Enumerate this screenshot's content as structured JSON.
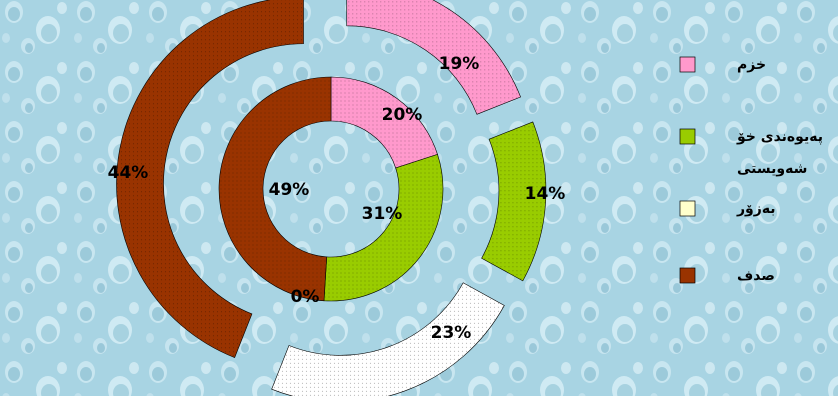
{
  "chart_data": {
    "type": "doughnut",
    "subtype": "exploded-doughnut",
    "rings": [
      {
        "ring": "outer",
        "values": [
          19,
          14,
          23,
          44
        ],
        "labels": [
          "19%",
          "14%",
          "23%",
          "44%"
        ]
      },
      {
        "ring": "inner",
        "values": [
          20,
          31,
          0,
          49
        ],
        "labels": [
          "20%",
          "31%",
          "0%",
          "49%"
        ]
      }
    ],
    "categories": [
      "خزم",
      "پەيوەندی خۆ شەويستی",
      "بەزۆر",
      "صدف"
    ],
    "colors": [
      "#ff99cc",
      "#99cc00",
      "#ffffff",
      "#993300"
    ],
    "legend": {
      "position": "right",
      "items": [
        {
          "label": "خزم",
          "color": "#ff99cc"
        },
        {
          "label": "پەيوەندی خۆ شەويستی",
          "color": "#99cc00"
        },
        {
          "label": "بەزۆر",
          "color": "#ffffcc"
        },
        {
          "label": "صدف",
          "color": "#993300"
        }
      ]
    },
    "background": "water-droplets texture, light blue"
  }
}
